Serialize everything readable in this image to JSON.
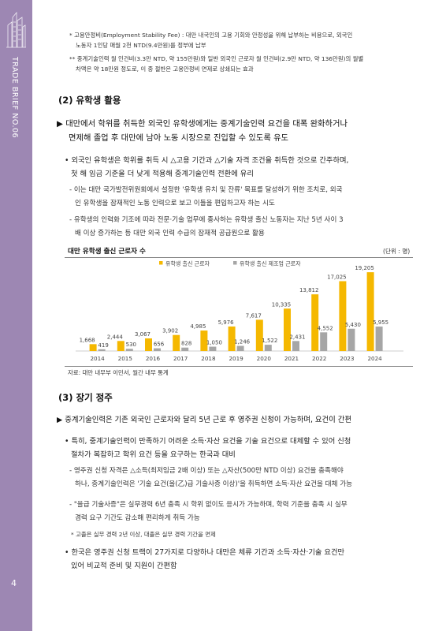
{
  "sidebar": {
    "brand": "TRADE BRIEF",
    "issue": "NO.06",
    "page_number": "4"
  },
  "notes_top": [
    "* 고용안정비(Employment Stability Fee) : 대만 내국인의 고용 기회와 안정성을 위해 납부하는 비용으로, 외국인",
    "노동자 1인당 매월 2천 NTD(9.4만원)를 정부에 납부",
    "** 중계기술인력 월 인건비(3.3만 NTD, 약 155만원)와 일반 외국인 근로자 월 인건비(2.9만 NTD, 약 136만원)의 월별",
    "차액은 약 18만원 정도로, 이 중 절반은 고용안정비 면제로 상쇄되는 효과"
  ],
  "section2": {
    "heading": "(2) 유학생 활용",
    "main": [
      "▶ 대만에서 학위를 취득한 외국인 유학생에게는 중계기술인력 요건을 대폭 완화하거나",
      "면제해 졸업 후 대만에 남아 노동 시장으로 진입할 수 있도록 유도"
    ],
    "bullet": [
      "• 외국인 유학생은 학위를 취득 시 △고용 기간과 △기술 자격 조건을 취득한 것으로 간주하며,",
      "첫 해 임금 기준을 더 낮게 적용해 중계기술인력 전환에 유리"
    ],
    "sub1": [
      "- 이는 대만 국가발전위원회에서 설정한 '유학생 유치 및 잔류' 목표를 달성하기 위한 조치로, 외국",
      "인 유학생을 잠재적인 노동 인력으로 보고 이들을 편입하고자 하는 시도"
    ],
    "sub2": [
      "- 유학생의 인력화 기조에 따라 전문·기술 업무에 종사하는 유학생 출신 노동자는 지난 5년 사이 3",
      "배 이상 증가하는 등 대만 외국 인력 수급의 잠재적 공급원으로 활용"
    ]
  },
  "chart_title": "대만 유학생 출신 근로자 수",
  "chart_unit": "(단위 : 명)",
  "chart_source": "자료: 대만 내무부 이민서, 월간 내무 통계",
  "chart_data": {
    "type": "bar",
    "categories": [
      "2014",
      "2015",
      "2016",
      "2017",
      "2018",
      "2019",
      "2020",
      "2021",
      "2022",
      "2023",
      "2024"
    ],
    "series": [
      {
        "name": "유학생 출신 근로자",
        "color": "#f5b800",
        "values": [
          1668,
          2444,
          3067,
          3902,
          4985,
          5976,
          7617,
          10335,
          13812,
          17025,
          19205
        ]
      },
      {
        "name": "유학생 출신 제조업 근로자",
        "color": "#a6a6a6",
        "values": [
          419,
          530,
          656,
          828,
          1050,
          1246,
          1522,
          2431,
          4552,
          5430,
          5955
        ]
      }
    ],
    "legend_position": "top",
    "value_labels": true,
    "ylim": [
      0,
      20000
    ]
  },
  "section3": {
    "heading": "(3) 장기 정주",
    "main": "▶ 중계기술인력은 기존 외국인 근로자와 달리 5년 근로 후 영주권 신청이 가능하며, 요건이 간편",
    "bullet1": [
      "• 특히, 중계기술인력이 만족하기 어려운 소득·자산 요건을 기술 요건으로 대체할 수 있어 신청",
      "절차가 복잡하고 학위 요건 등을 요구하는 한국과 대비"
    ],
    "sub1": [
      "- 영주권 신청 자격은 △소득(최저임금 2배 이상) 또는 △자산(500만 NTD 이상) 요건을 충족해야",
      "하나, 중계기술인력은 '기술 요건(을(乙)급 기술사증 이상)'을 취득하면 소득·자산 요건을 대체 가능"
    ],
    "sub2": [
      "- \"을급 기술사증\"은 실무경력 6년 충족 시 학위 없이도 응시가 가능하며, 학력 기준을 충족 시 실무",
      "경력 요구 기간도 감소해 편리하게 취득 가능"
    ],
    "note": "* 고졸은 실무 경력 2년 이상, 대졸은 실무 경력 기간을 면제",
    "bullet2": [
      "• 한국은 영주권 신청 트랙이 27가지로 다양하나 대만은 체류 기간과 소득·자산·기술 요건만",
      "있어 비교적 준비 및 지원이 간편함"
    ]
  },
  "colors": {
    "sidebar": "#9d87b3",
    "series1": "#f5b800",
    "series2": "#a6a6a6"
  }
}
